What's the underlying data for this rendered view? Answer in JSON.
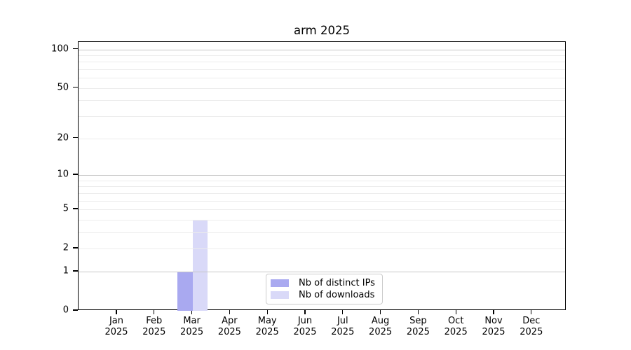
{
  "chart_data": {
    "type": "bar",
    "title": "arm 2025",
    "categories": [
      "Jan 2025",
      "Feb 2025",
      "Mar 2025",
      "Apr 2025",
      "May 2025",
      "Jun 2025",
      "Jul 2025",
      "Aug 2025",
      "Sep 2025",
      "Oct 2025",
      "Nov 2025",
      "Dec 2025"
    ],
    "series": [
      {
        "name": "Nb of distinct IPs",
        "color": "#a9a9f0",
        "values": [
          0,
          0,
          1,
          0,
          0,
          0,
          0,
          0,
          0,
          0,
          0,
          0
        ]
      },
      {
        "name": "Nb of downloads",
        "color": "#d9d9f8",
        "values": [
          0,
          0,
          4,
          0,
          0,
          0,
          0,
          0,
          0,
          0,
          0,
          0
        ]
      }
    ],
    "yscale": "log1p",
    "ylim": [
      0,
      114
    ],
    "yticks": [
      0,
      1,
      2,
      5,
      10,
      20,
      50,
      100
    ],
    "grid_major": [
      1,
      10,
      100
    ],
    "grid_minor": [
      2,
      3,
      4,
      5,
      6,
      7,
      8,
      9,
      20,
      30,
      40,
      50,
      60,
      70,
      80,
      90
    ],
    "grid": "horizontal",
    "legend_position": "lower center",
    "colors": {
      "grid_major": "#c6c6c6",
      "grid_minor": "#ececec",
      "frame": "#000000",
      "legend_border": "#cccccc",
      "background": "#ffffff",
      "text": "#000000"
    }
  }
}
